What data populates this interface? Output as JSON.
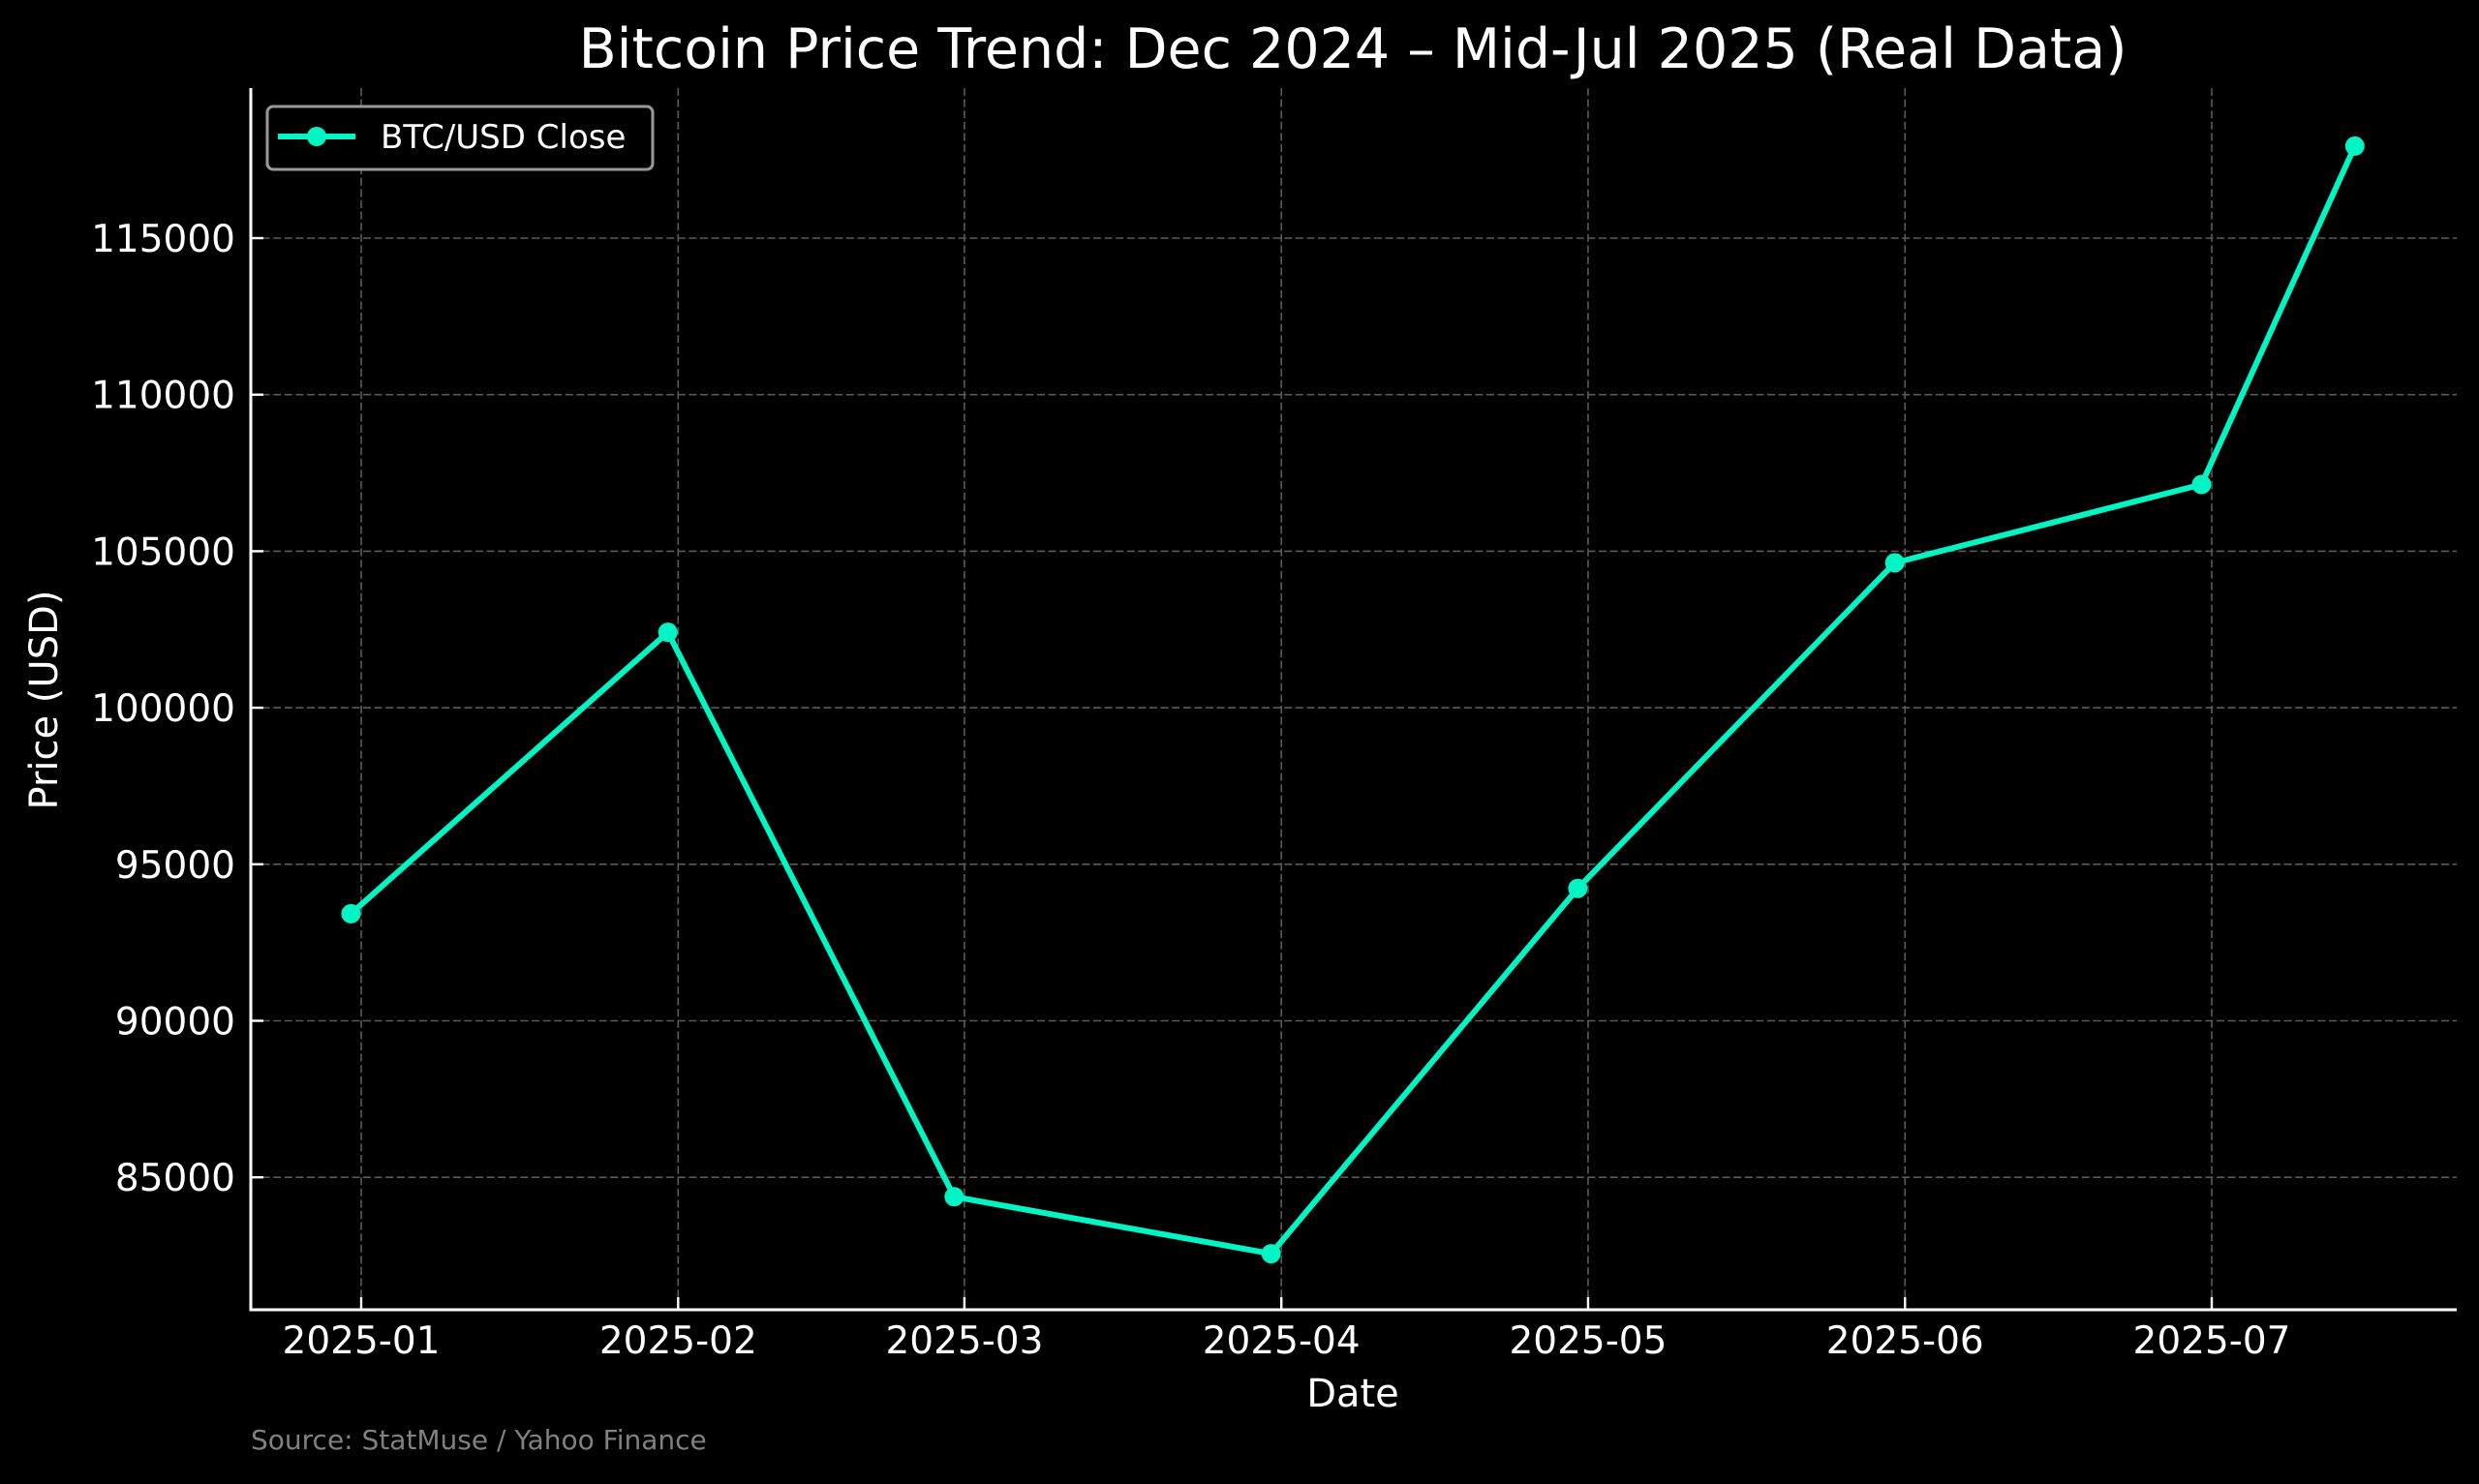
{
  "chart": {
    "title": "Bitcoin Price Trend: Dec 2024 – Mid-Jul 2025 (Real Data)",
    "xlabel": "Date",
    "ylabel": "Price (USD)",
    "source": "Source: StatMuse / Yahoo Finance",
    "legend_label": "BTC/USD Close",
    "line_color": "#00F5C4",
    "background": "#000000",
    "grid_color": "#5a5a5a"
  },
  "chart_data": {
    "type": "line",
    "title": "Bitcoin Price Trend: Dec 2024 – Mid-Jul 2025 (Real Data)",
    "xlabel": "Date",
    "ylabel": "Price (USD)",
    "x": [
      "2024-12-31",
      "2025-01-31",
      "2025-02-28",
      "2025-03-31",
      "2025-04-30",
      "2025-05-31",
      "2025-06-30",
      "2025-07-15"
    ],
    "series": [
      {
        "name": "BTC/USD Close",
        "color": "#00F5C4",
        "marker": "circle",
        "values": [
          93420,
          102410,
          84380,
          82560,
          94230,
          104630,
          107130,
          117940
        ]
      }
    ],
    "x_ticks": [
      "2025-01",
      "2025-02",
      "2025-03",
      "2025-04",
      "2025-05",
      "2025-06",
      "2025-07"
    ],
    "y_ticks": [
      85000,
      90000,
      95000,
      100000,
      105000,
      110000,
      115000
    ],
    "ylim": [
      81300,
      119600
    ],
    "xlim": [
      "2024-12-22",
      "2025-07-24"
    ],
    "grid": true,
    "grid_style": "dashed",
    "legend_position": "upper left",
    "annotations": [
      "Source: StatMuse / Yahoo Finance"
    ]
  }
}
